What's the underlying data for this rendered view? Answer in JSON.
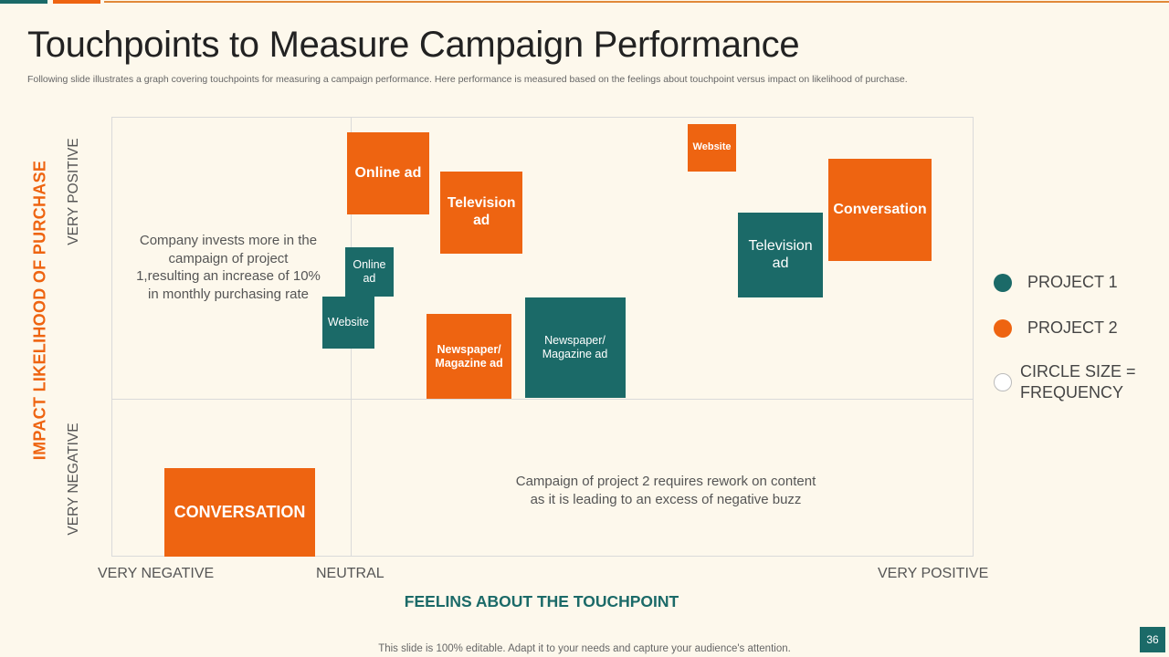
{
  "slide": {
    "title": "Touchpoints to Measure Campaign Performance",
    "subtitle": "Following slide illustrates a graph covering touchpoints for measuring a campaign performance. Here performance is measured based on the feelings about touchpoint versus impact on likelihood of purchase.",
    "footer": "This slide is 100% editable. Adapt it to your needs and capture your audience's attention.",
    "page_number": "36"
  },
  "colors": {
    "project1": "#1B6A68",
    "project2": "#EE6411",
    "background": "#FDF8EC"
  },
  "chart_data": {
    "type": "scatter",
    "title": "",
    "xlabel": "FEELINS ABOUT THE TOUCHPOINT",
    "ylabel": "IMPACT LIKELIHOOD OF PURCHASE",
    "x_ticks": [
      "VERY NEGATIVE",
      "NEUTRAL",
      "VERY POSITIVE"
    ],
    "y_ticks": [
      "VERY POSITIVE",
      "VERY NEGATIVE"
    ],
    "size_meaning": "frequency",
    "legend": [
      {
        "label": "PROJECT 1",
        "color": "#1B6A68"
      },
      {
        "label": "PROJECT 2",
        "color": "#EE6411"
      },
      {
        "label": "CIRCLE SIZE = FREQUENCY",
        "color": "#FFFFFF"
      }
    ],
    "series": [
      {
        "name": "PROJECT 1",
        "points": [
          {
            "label": "Online\nad",
            "feeling": 0.03,
            "impact": 0.45,
            "size": 0.49
          },
          {
            "label": "Website",
            "feeling": -0.01,
            "impact": 0.27,
            "size": 0.52
          },
          {
            "label": "Newspaper/\nMagazine ad",
            "feeling": 0.36,
            "impact": 0.18,
            "size": 1.0
          },
          {
            "label": "Television\nad",
            "feeling": 0.69,
            "impact": 0.51,
            "size": 0.85
          }
        ]
      },
      {
        "name": "PROJECT 2",
        "points": [
          {
            "label": "Online ad",
            "feeling": 0.06,
            "impact": 0.8,
            "size": 0.8
          },
          {
            "label": "Television\nad",
            "feeling": 0.21,
            "impact": 0.66,
            "size": 0.8
          },
          {
            "label": "Website",
            "feeling": 0.58,
            "impact": 0.89,
            "size": 0.47
          },
          {
            "label": "Conversation",
            "feeling": 0.87,
            "impact": 0.67,
            "size": 1.0
          },
          {
            "label": "Newspaper/\nMagazine ad",
            "feeling": 0.19,
            "impact": 0.15,
            "size": 0.83
          },
          {
            "label": "CONVERSATION",
            "feeling": -0.54,
            "impact": -0.77,
            "size": 1.0
          }
        ]
      }
    ],
    "annotations": [
      "Company invests more in the\ncampaign of project\n1,resulting an increase of 10%\nin monthly purchasing rate",
      "Campaign of project 2 requires rework on content\nas it is leading to an excess of negative buzz"
    ]
  }
}
